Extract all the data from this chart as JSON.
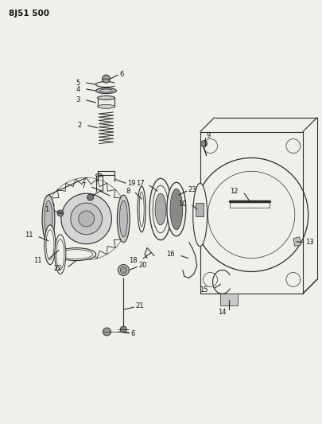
{
  "title": "8J51 500",
  "bg_color": "#f0f0eb",
  "line_color": "#2a2a2a",
  "label_color": "#111111",
  "fig_width": 4.05,
  "fig_height": 5.33,
  "dpi": 100
}
